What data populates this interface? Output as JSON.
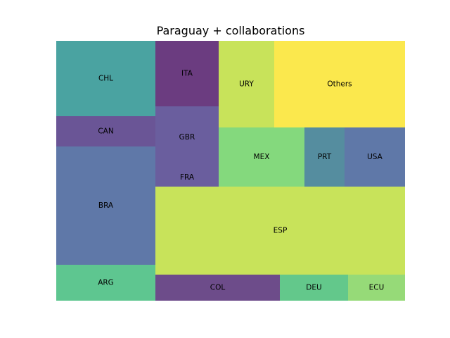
{
  "chart_data": {
    "type": "treemap",
    "title": "Paraguay + collaborations",
    "cells": [
      {
        "label": "CHL",
        "value": 15.0,
        "color": "#4aa3a1"
      },
      {
        "label": "CAN",
        "value": 6.0,
        "color": "#6a5596"
      },
      {
        "label": "BRA",
        "value": 23.5,
        "color": "#5f78a8"
      },
      {
        "label": "ARG",
        "value": 7.2,
        "color": "#5ec690"
      },
      {
        "label": "ITA",
        "value": 8.3,
        "color": "#6b3c80"
      },
      {
        "label": "GBR",
        "value": 8.0,
        "color": "#6a5e9e"
      },
      {
        "label": "FRA",
        "value": 2.3,
        "color": "#6a5e9e"
      },
      {
        "label": "URY",
        "value": 9.6,
        "color": "#c8e35a"
      },
      {
        "label": "Others",
        "value": 22.3,
        "color": "#fbe84d"
      },
      {
        "label": "MEX",
        "value": 10.2,
        "color": "#84d97d"
      },
      {
        "label": "PRT",
        "value": 4.8,
        "color": "#558d9f"
      },
      {
        "label": "USA",
        "value": 7.2,
        "color": "#5f78a8"
      },
      {
        "label": "ESP",
        "value": 44.4,
        "color": "#c8e35a"
      },
      {
        "label": "COL",
        "value": 6.6,
        "color": "#6d4c8a"
      },
      {
        "label": "DEU",
        "value": 3.6,
        "color": "#63c88b"
      },
      {
        "label": "ECU",
        "value": 3.0,
        "color": "#96da78"
      }
    ]
  }
}
